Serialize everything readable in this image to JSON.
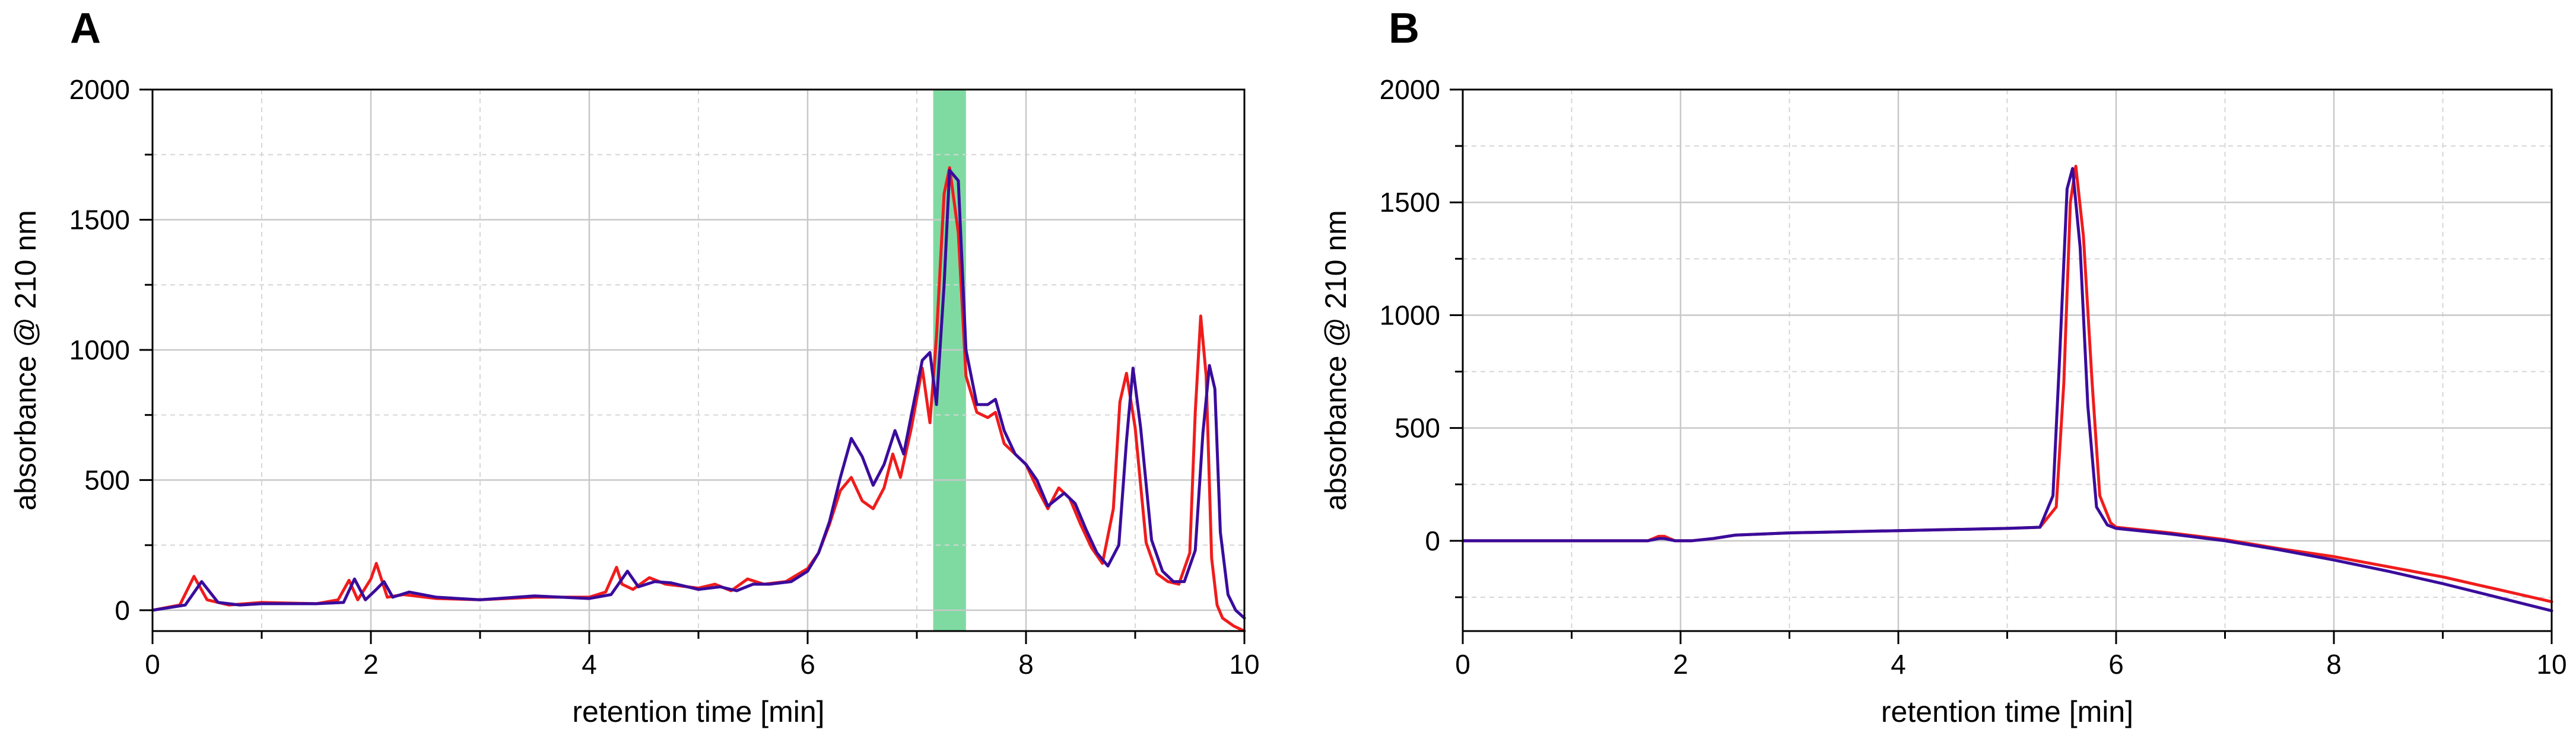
{
  "chart_data": [
    {
      "type": "line",
      "panel": "A",
      "title": "",
      "xlabel": "retention time [min]",
      "ylabel": "absorbance @ 210 nm",
      "xlim": [
        0,
        10
      ],
      "ylim": [
        -80,
        2000
      ],
      "x_ticks": [
        0,
        2,
        4,
        6,
        8,
        10
      ],
      "y_ticks": [
        0,
        500,
        1000,
        1500,
        2000
      ],
      "x_tick_labels": [
        "0",
        "2",
        "4",
        "6",
        "8",
        "10"
      ],
      "y_tick_labels": [
        "0",
        "500",
        "1000",
        "1500",
        "2000"
      ],
      "grid": true,
      "highlight": {
        "x_range": [
          7.15,
          7.45
        ],
        "color": "#7fdaa2"
      },
      "series": [
        {
          "name": "red trace",
          "color": "#f01c1c",
          "x": [
            0,
            0.25,
            0.38,
            0.5,
            0.7,
            1.0,
            1.5,
            1.7,
            1.8,
            1.88,
            2.0,
            2.05,
            2.15,
            2.3,
            2.6,
            3.0,
            3.5,
            4.0,
            4.15,
            4.25,
            4.3,
            4.4,
            4.55,
            4.7,
            5.0,
            5.15,
            5.3,
            5.45,
            5.6,
            5.8,
            6.0,
            6.1,
            6.2,
            6.3,
            6.4,
            6.5,
            6.6,
            6.7,
            6.78,
            6.85,
            6.95,
            7.05,
            7.12,
            7.18,
            7.25,
            7.3,
            7.38,
            7.45,
            7.55,
            7.65,
            7.72,
            7.8,
            7.9,
            8.0,
            8.1,
            8.2,
            8.3,
            8.4,
            8.5,
            8.6,
            8.7,
            8.8,
            8.86,
            8.92,
            9.0,
            9.1,
            9.2,
            9.3,
            9.4,
            9.5,
            9.55,
            9.6,
            9.65,
            9.7,
            9.75,
            9.8,
            9.9,
            10.0
          ],
          "y": [
            0,
            20,
            130,
            40,
            20,
            30,
            25,
            40,
            115,
            40,
            120,
            180,
            50,
            60,
            45,
            40,
            50,
            50,
            70,
            165,
            100,
            80,
            125,
            100,
            85,
            100,
            75,
            120,
            100,
            110,
            160,
            220,
            330,
            460,
            510,
            420,
            390,
            470,
            600,
            510,
            700,
            930,
            720,
            1050,
            1600,
            1700,
            1450,
            900,
            760,
            740,
            760,
            640,
            600,
            560,
            470,
            390,
            470,
            430,
            330,
            240,
            180,
            390,
            800,
            910,
            700,
            260,
            140,
            110,
            100,
            220,
            760,
            1130,
            900,
            200,
            20,
            -30,
            -60,
            -80
          ]
        },
        {
          "name": "blue trace",
          "color": "#3a0c9c",
          "x": [
            0,
            0.3,
            0.45,
            0.6,
            0.8,
            1.0,
            1.5,
            1.75,
            1.85,
            1.95,
            2.05,
            2.12,
            2.2,
            2.35,
            2.6,
            3.0,
            3.5,
            4.0,
            4.2,
            4.3,
            4.35,
            4.45,
            4.6,
            4.75,
            5.0,
            5.2,
            5.35,
            5.5,
            5.65,
            5.85,
            6.0,
            6.1,
            6.2,
            6.3,
            6.4,
            6.5,
            6.6,
            6.7,
            6.8,
            6.88,
            6.95,
            7.05,
            7.12,
            7.18,
            7.25,
            7.3,
            7.38,
            7.45,
            7.55,
            7.65,
            7.72,
            7.8,
            7.9,
            8.0,
            8.1,
            8.2,
            8.35,
            8.45,
            8.55,
            8.65,
            8.75,
            8.85,
            8.92,
            8.98,
            9.05,
            9.15,
            9.25,
            9.35,
            9.45,
            9.55,
            9.62,
            9.68,
            9.73,
            9.78,
            9.85,
            9.92,
            10.0
          ],
          "y": [
            0,
            20,
            110,
            30,
            20,
            25,
            25,
            30,
            120,
            40,
            80,
            110,
            50,
            70,
            50,
            40,
            55,
            45,
            60,
            120,
            150,
            90,
            110,
            105,
            80,
            90,
            75,
            100,
            100,
            110,
            150,
            220,
            340,
            510,
            660,
            590,
            480,
            560,
            690,
            600,
            750,
            960,
            990,
            790,
            1250,
            1690,
            1650,
            1000,
            790,
            790,
            810,
            690,
            600,
            560,
            500,
            400,
            450,
            410,
            310,
            220,
            170,
            250,
            650,
            930,
            700,
            270,
            150,
            110,
            110,
            230,
            680,
            940,
            850,
            300,
            60,
            0,
            -30
          ]
        }
      ]
    },
    {
      "type": "line",
      "panel": "B",
      "title": "",
      "xlabel": "retention time [min]",
      "ylabel": "absorbance @ 210 nm",
      "xlim": [
        0,
        10
      ],
      "ylim": [
        -400,
        2000
      ],
      "x_ticks": [
        0,
        2,
        4,
        6,
        8,
        10
      ],
      "y_ticks": [
        0,
        500,
        1000,
        1500,
        2000
      ],
      "x_tick_labels": [
        "0",
        "2",
        "4",
        "6",
        "8",
        "10"
      ],
      "y_tick_labels": [
        "0",
        "500",
        "1000",
        "1500",
        "2000"
      ],
      "grid": true,
      "series": [
        {
          "name": "red trace",
          "color": "#f01c1c",
          "x": [
            0,
            1.0,
            1.7,
            1.8,
            1.85,
            1.95,
            2.1,
            2.3,
            2.5,
            3.0,
            4.0,
            5.0,
            5.3,
            5.45,
            5.52,
            5.58,
            5.63,
            5.7,
            5.78,
            5.85,
            5.95,
            6.0,
            6.5,
            7.0,
            7.5,
            8.0,
            8.5,
            9.0,
            9.5,
            10.0
          ],
          "y": [
            0,
            0,
            0,
            20,
            20,
            0,
            0,
            10,
            25,
            35,
            45,
            55,
            60,
            150,
            700,
            1500,
            1660,
            1350,
            700,
            200,
            80,
            60,
            35,
            5,
            -35,
            -70,
            -115,
            -160,
            -215,
            -270
          ]
        },
        {
          "name": "blue trace",
          "color": "#3a0c9c",
          "x": [
            0,
            1.0,
            1.7,
            1.8,
            1.85,
            1.95,
            2.1,
            2.3,
            2.5,
            3.0,
            4.0,
            5.0,
            5.3,
            5.42,
            5.48,
            5.55,
            5.6,
            5.67,
            5.74,
            5.82,
            5.92,
            6.0,
            6.5,
            7.0,
            7.5,
            8.0,
            8.5,
            9.0,
            9.5,
            10.0
          ],
          "y": [
            0,
            0,
            0,
            10,
            10,
            0,
            0,
            10,
            25,
            35,
            45,
            55,
            60,
            200,
            800,
            1560,
            1650,
            1300,
            600,
            150,
            70,
            55,
            30,
            0,
            -40,
            -85,
            -135,
            -190,
            -250,
            -310
          ]
        }
      ]
    }
  ],
  "panels": {
    "a": {
      "letter": "A"
    },
    "b": {
      "letter": "B"
    }
  },
  "colors": {
    "axis": "#000000",
    "grid_major": "#c8c8c8",
    "grid_minor": "#d6d6d6"
  }
}
